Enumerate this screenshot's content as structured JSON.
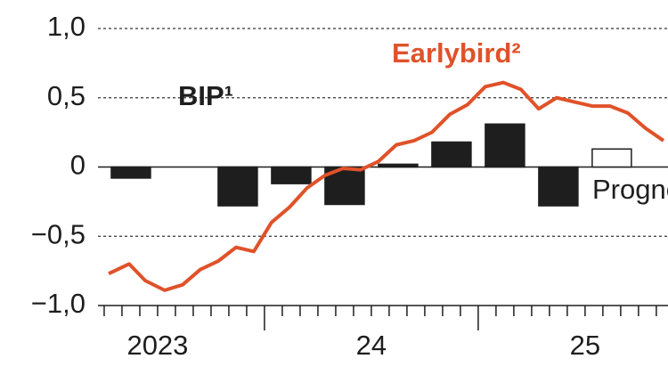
{
  "chart_data": {
    "type": "combo",
    "xlim": [
      2023.221,
      2025.888
    ],
    "xticks": [
      {
        "value": 2023.5,
        "label": "2023"
      },
      {
        "value": 2024.5,
        "label": "24"
      },
      {
        "value": 2025.5,
        "label": "25"
      }
    ],
    "ylim": [
      -1,
      1
    ],
    "yticks": [
      {
        "value": -1,
        "label": "−1,0"
      },
      {
        "value": -0.5,
        "label": "−0,5"
      },
      0,
      {
        "value": 0.5,
        "label": "0,5"
      },
      {
        "value": 1,
        "label": "1,0"
      }
    ],
    "grid": true,
    "series": [
      {
        "name": "BIP¹",
        "type": "bar",
        "color": "#1e1e1e",
        "x": [
          2023.375,
          2023.875,
          2024.125,
          2024.375,
          2024.625,
          2024.875,
          2025.125,
          2025.375
        ],
        "values": [
          -0.08,
          -0.28,
          -0.12,
          -0.27,
          0.02,
          0.18,
          0.31,
          -0.28
        ]
      },
      {
        "name": "Prognose",
        "type": "bar",
        "color": "#ffffff",
        "x": [
          2025.625
        ],
        "values": [
          0.13
        ]
      },
      {
        "name": "Earlybird²",
        "type": "line",
        "color": "#e0522a",
        "x": [
          2023.271,
          2023.367,
          2023.442,
          2023.533,
          2023.617,
          2023.7,
          2023.783,
          2023.867,
          2023.95,
          2024.033,
          2024.117,
          2024.2,
          2024.283,
          2024.367,
          2024.45,
          2024.533,
          2024.617,
          2024.7,
          2024.783,
          2024.867,
          2024.95,
          2025.033,
          2025.117,
          2025.2,
          2025.283,
          2025.367,
          2025.45,
          2025.533,
          2025.617,
          2025.7,
          2025.783,
          2025.867
        ],
        "values": [
          -0.77,
          -0.7,
          -0.82,
          -0.89,
          -0.85,
          -0.74,
          -0.68,
          -0.58,
          -0.61,
          -0.4,
          -0.29,
          -0.15,
          -0.06,
          -0.01,
          -0.02,
          0.04,
          0.16,
          0.19,
          0.25,
          0.38,
          0.45,
          0.58,
          0.61,
          0.56,
          0.42,
          0.5,
          0.47,
          0.44,
          0.44,
          0.39,
          0.28,
          0.19
        ]
      }
    ]
  }
}
